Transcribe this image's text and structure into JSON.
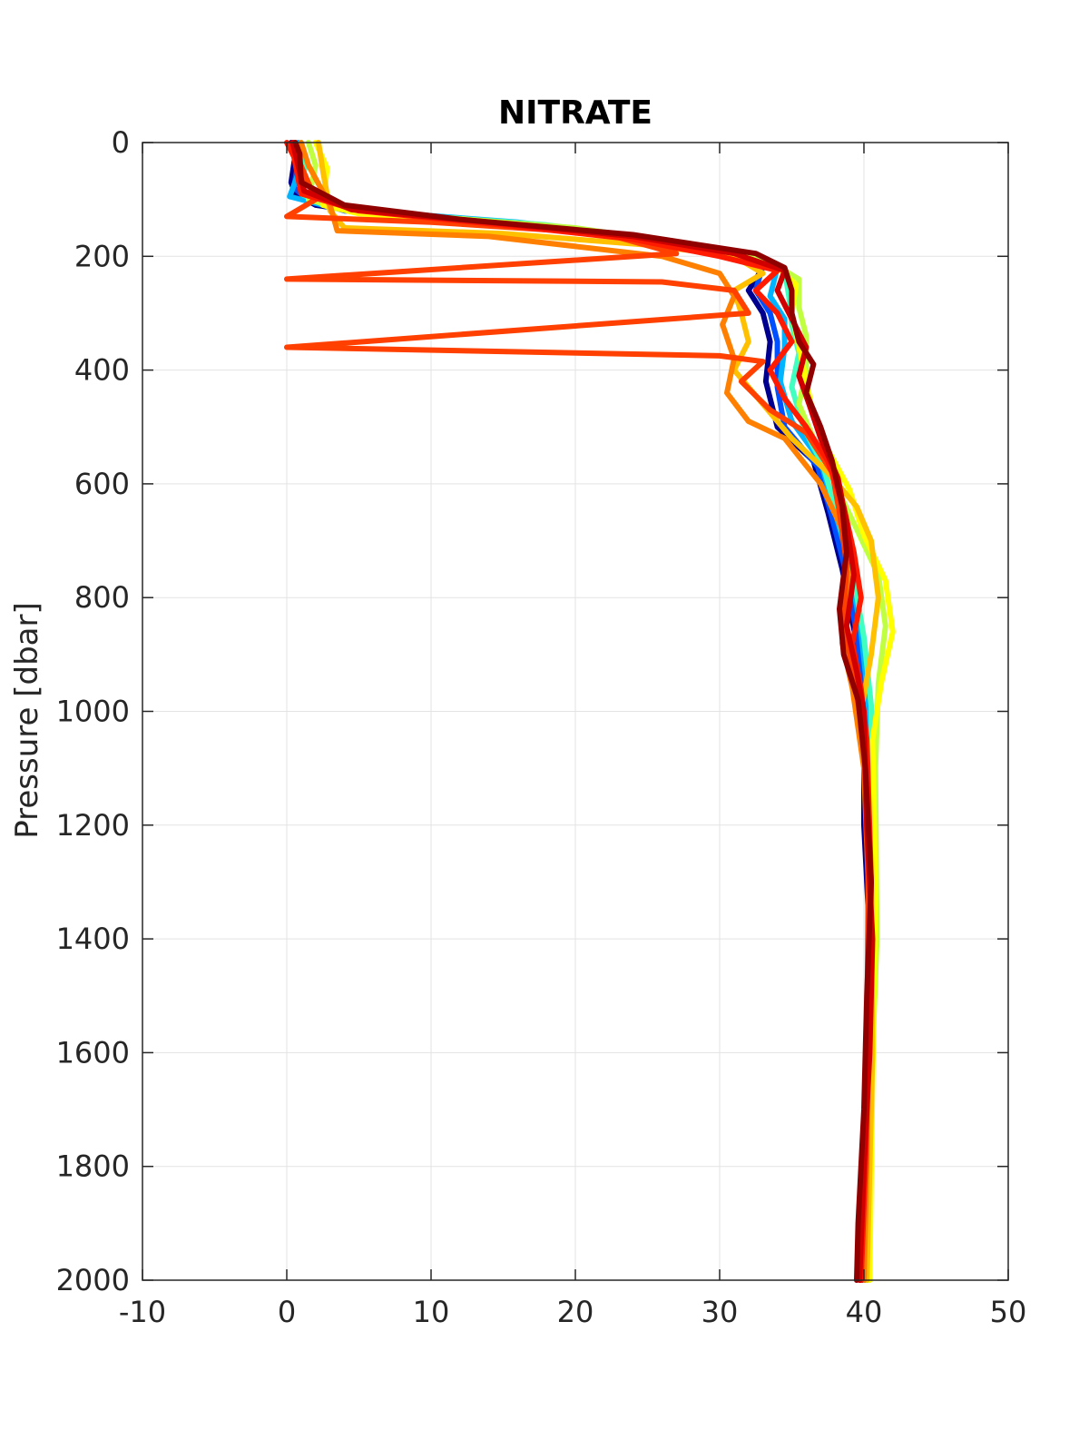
{
  "chart_data": {
    "type": "line",
    "title": "NITRATE",
    "xlabel": "",
    "ylabel": "Pressure [dbar]",
    "xlim": [
      -10,
      50
    ],
    "ylim": [
      0,
      2000
    ],
    "y_reversed": true,
    "grid": true,
    "xticks": [
      -10,
      0,
      10,
      20,
      30,
      40,
      50
    ],
    "yticks": [
      0,
      200,
      400,
      600,
      800,
      1000,
      1200,
      1400,
      1600,
      1800,
      2000
    ],
    "colormap": "jet",
    "series": [
      {
        "color": "#00008f",
        "points": [
          [
            0.3,
            0
          ],
          [
            0.6,
            20
          ],
          [
            0.3,
            70
          ],
          [
            0.6,
            90
          ],
          [
            2,
            110
          ],
          [
            6,
            125
          ],
          [
            14,
            140
          ],
          [
            22,
            160
          ],
          [
            30,
            190
          ],
          [
            33,
            220
          ],
          [
            32,
            260
          ],
          [
            33,
            300
          ],
          [
            33.5,
            350
          ],
          [
            33.2,
            420
          ],
          [
            34,
            500
          ],
          [
            36.5,
            560
          ],
          [
            37.5,
            650
          ],
          [
            38.5,
            750
          ],
          [
            39.5,
            880
          ],
          [
            40,
            1000
          ],
          [
            40,
            1200
          ],
          [
            40.4,
            1400
          ],
          [
            40.2,
            1600
          ],
          [
            40,
            1800
          ],
          [
            39.9,
            2000
          ]
        ]
      },
      {
        "color": "#0050ff",
        "points": [
          [
            0.5,
            0
          ],
          [
            0.8,
            30
          ],
          [
            0.5,
            80
          ],
          [
            1.5,
            100
          ],
          [
            4,
            120
          ],
          [
            12,
            135
          ],
          [
            20,
            155
          ],
          [
            29,
            185
          ],
          [
            33,
            215
          ],
          [
            32.5,
            260
          ],
          [
            33.5,
            300
          ],
          [
            34,
            350
          ],
          [
            34,
            430
          ],
          [
            34.5,
            500
          ],
          [
            36.8,
            570
          ],
          [
            37.8,
            660
          ],
          [
            38.8,
            760
          ],
          [
            39.6,
            880
          ],
          [
            40.1,
            1000
          ],
          [
            40.2,
            1200
          ],
          [
            40.5,
            1400
          ],
          [
            40.3,
            1600
          ],
          [
            40.1,
            1800
          ],
          [
            40,
            2000
          ]
        ]
      },
      {
        "color": "#00b4ff",
        "points": [
          [
            0.8,
            0
          ],
          [
            1.0,
            40
          ],
          [
            0.2,
            95
          ],
          [
            2.5,
            110
          ],
          [
            8,
            125
          ],
          [
            16,
            140
          ],
          [
            24,
            165
          ],
          [
            31,
            190
          ],
          [
            34,
            220
          ],
          [
            33.5,
            270
          ],
          [
            34.5,
            310
          ],
          [
            34.5,
            360
          ],
          [
            34.2,
            420
          ],
          [
            35,
            490
          ],
          [
            37,
            560
          ],
          [
            38,
            650
          ],
          [
            39,
            740
          ],
          [
            39.8,
            860
          ],
          [
            40.3,
            980
          ],
          [
            40.5,
            1200
          ],
          [
            40.7,
            1400
          ],
          [
            40.4,
            1600
          ],
          [
            40.2,
            1800
          ],
          [
            40.1,
            2000
          ]
        ]
      },
      {
        "color": "#40ffc0",
        "points": [
          [
            1,
            0
          ],
          [
            1.3,
            35
          ],
          [
            1,
            90
          ],
          [
            3,
            115
          ],
          [
            9,
            128
          ],
          [
            18,
            145
          ],
          [
            26,
            170
          ],
          [
            32,
            195
          ],
          [
            34.5,
            225
          ],
          [
            34.8,
            270
          ],
          [
            35,
            320
          ],
          [
            35.5,
            370
          ],
          [
            35,
            430
          ],
          [
            35.8,
            500
          ],
          [
            37.2,
            570
          ],
          [
            38.2,
            660
          ],
          [
            39.2,
            750
          ],
          [
            40,
            870
          ],
          [
            40.5,
            990
          ],
          [
            40.6,
            1200
          ],
          [
            40.8,
            1400
          ],
          [
            40.5,
            1600
          ],
          [
            40.3,
            1800
          ],
          [
            40.2,
            2000
          ]
        ]
      },
      {
        "color": "#c0ff40",
        "points": [
          [
            1.5,
            0
          ],
          [
            2,
            40
          ],
          [
            1.5,
            100
          ],
          [
            4,
            118
          ],
          [
            11,
            132
          ],
          [
            20,
            150
          ],
          [
            28,
            180
          ],
          [
            33.5,
            210
          ],
          [
            35.5,
            240
          ],
          [
            35.5,
            290
          ],
          [
            36,
            340
          ],
          [
            36,
            400
          ],
          [
            35.5,
            460
          ],
          [
            36.5,
            520
          ],
          [
            38,
            600
          ],
          [
            39.5,
            680
          ],
          [
            41,
            760
          ],
          [
            41.5,
            850
          ],
          [
            41,
            950
          ],
          [
            40.8,
            1100
          ],
          [
            40.9,
            1400
          ],
          [
            40.6,
            1600
          ],
          [
            40.4,
            1800
          ],
          [
            40.3,
            2000
          ]
        ]
      },
      {
        "color": "#ffff00",
        "points": [
          [
            2,
            0
          ],
          [
            2.8,
            45
          ],
          [
            2.5,
            110
          ],
          [
            5,
            125
          ],
          [
            13,
            140
          ],
          [
            22,
            158
          ],
          [
            29,
            190
          ],
          [
            34,
            220
          ],
          [
            35.3,
            250
          ],
          [
            35,
            300
          ],
          [
            35.5,
            360
          ],
          [
            36,
            420
          ],
          [
            36.5,
            480
          ],
          [
            37.5,
            540
          ],
          [
            39,
            610
          ],
          [
            40,
            690
          ],
          [
            41.5,
            770
          ],
          [
            42,
            860
          ],
          [
            41.2,
            950
          ],
          [
            40.6,
            1050
          ],
          [
            40.8,
            1300
          ],
          [
            40.7,
            1500
          ],
          [
            40.5,
            1800
          ],
          [
            40.4,
            2000
          ]
        ]
      },
      {
        "color": "#ffc000",
        "points": [
          [
            2.2,
            0
          ],
          [
            2.5,
            50
          ],
          [
            3,
            120
          ],
          [
            4,
            150
          ],
          [
            15,
            160
          ],
          [
            25,
            180
          ],
          [
            31,
            200
          ],
          [
            33,
            230
          ],
          [
            31,
            260
          ],
          [
            31.5,
            300
          ],
          [
            32,
            350
          ],
          [
            31,
            400
          ],
          [
            33,
            460
          ],
          [
            35,
            520
          ],
          [
            37.5,
            580
          ],
          [
            39.5,
            640
          ],
          [
            40.5,
            700
          ],
          [
            41,
            800
          ],
          [
            40.5,
            900
          ],
          [
            39.8,
            1000
          ],
          [
            40.5,
            1300
          ],
          [
            40.6,
            1600
          ],
          [
            40.4,
            1800
          ],
          [
            40.2,
            2000
          ]
        ]
      },
      {
        "color": "#ff8000",
        "points": [
          [
            1,
            0
          ],
          [
            1.5,
            40
          ],
          [
            3,
            110
          ],
          [
            3.5,
            155
          ],
          [
            14,
            165
          ],
          [
            26,
            200
          ],
          [
            30,
            230
          ],
          [
            31,
            270
          ],
          [
            30.2,
            320
          ],
          [
            31,
            380
          ],
          [
            30.5,
            440
          ],
          [
            32,
            490
          ],
          [
            34.5,
            520
          ],
          [
            37,
            600
          ],
          [
            38.5,
            680
          ],
          [
            39,
            780
          ],
          [
            38.5,
            880
          ],
          [
            39.2,
            960
          ],
          [
            40,
            1100
          ],
          [
            40.3,
            1300
          ],
          [
            40.3,
            1600
          ],
          [
            40.2,
            1800
          ],
          [
            40,
            2000
          ]
        ]
      },
      {
        "color": "#ff4000",
        "points": [
          [
            0.5,
            0
          ],
          [
            0.8,
            30
          ],
          [
            2,
            100
          ],
          [
            0,
            130
          ],
          [
            10,
            140
          ],
          [
            22,
            160
          ],
          [
            27,
            195
          ],
          [
            0,
            240
          ],
          [
            26,
            245
          ],
          [
            31,
            260
          ],
          [
            32,
            300
          ],
          [
            0,
            360
          ],
          [
            30,
            375
          ],
          [
            33,
            385
          ],
          [
            31.5,
            420
          ],
          [
            33.5,
            470
          ],
          [
            36,
            510
          ],
          [
            37.8,
            580
          ],
          [
            38.3,
            650
          ],
          [
            38.8,
            740
          ],
          [
            38.6,
            840
          ],
          [
            39.3,
            940
          ],
          [
            40,
            1050
          ],
          [
            40.3,
            1300
          ],
          [
            40.2,
            1600
          ],
          [
            40,
            1800
          ],
          [
            39.8,
            2000
          ]
        ]
      },
      {
        "color": "#ff1a00",
        "points": [
          [
            0,
            0
          ],
          [
            0.5,
            25
          ],
          [
            1,
            90
          ],
          [
            5,
            120
          ],
          [
            15,
            145
          ],
          [
            24,
            170
          ],
          [
            30,
            200
          ],
          [
            34,
            225
          ],
          [
            32.5,
            260
          ],
          [
            34,
            300
          ],
          [
            35,
            350
          ],
          [
            33.5,
            400
          ],
          [
            34.5,
            450
          ],
          [
            36,
            500
          ],
          [
            37.5,
            560
          ],
          [
            38.6,
            640
          ],
          [
            39.3,
            720
          ],
          [
            39.8,
            800
          ],
          [
            39.2,
            880
          ],
          [
            39.8,
            960
          ],
          [
            40.2,
            1050
          ],
          [
            40.5,
            1300
          ],
          [
            40.3,
            1600
          ],
          [
            40.1,
            1800
          ],
          [
            39.8,
            2000
          ]
        ]
      },
      {
        "color": "#d00000",
        "points": [
          [
            0.4,
            0
          ],
          [
            0.7,
            30
          ],
          [
            1.2,
            85
          ],
          [
            4.5,
            118
          ],
          [
            14,
            140
          ],
          [
            24,
            165
          ],
          [
            31,
            195
          ],
          [
            34.5,
            225
          ],
          [
            34,
            260
          ],
          [
            35,
            310
          ],
          [
            36,
            360
          ],
          [
            35.5,
            410
          ],
          [
            36.2,
            460
          ],
          [
            37,
            520
          ],
          [
            38.2,
            590
          ],
          [
            38.8,
            670
          ],
          [
            39.3,
            760
          ],
          [
            38.8,
            850
          ],
          [
            39.5,
            930
          ],
          [
            40,
            1000
          ],
          [
            40.2,
            1200
          ],
          [
            40.6,
            1400
          ],
          [
            40.4,
            1600
          ],
          [
            40,
            1800
          ],
          [
            39.7,
            2000
          ]
        ]
      },
      {
        "color": "#900000",
        "points": [
          [
            0.6,
            0
          ],
          [
            0.9,
            20
          ],
          [
            1,
            70
          ],
          [
            4,
            110
          ],
          [
            12,
            135
          ],
          [
            24,
            162
          ],
          [
            32.5,
            195
          ],
          [
            34.5,
            220
          ],
          [
            35,
            260
          ],
          [
            35,
            300
          ],
          [
            35.5,
            350
          ],
          [
            36.5,
            390
          ],
          [
            36,
            440
          ],
          [
            37,
            500
          ],
          [
            37.8,
            560
          ],
          [
            38.5,
            640
          ],
          [
            38.8,
            720
          ],
          [
            38.3,
            820
          ],
          [
            38.6,
            900
          ],
          [
            39.6,
            980
          ],
          [
            40.1,
            1100
          ],
          [
            40.5,
            1300
          ],
          [
            40.2,
            1500
          ],
          [
            40,
            1700
          ],
          [
            39.6,
            1900
          ],
          [
            39.5,
            2000
          ]
        ]
      }
    ]
  }
}
